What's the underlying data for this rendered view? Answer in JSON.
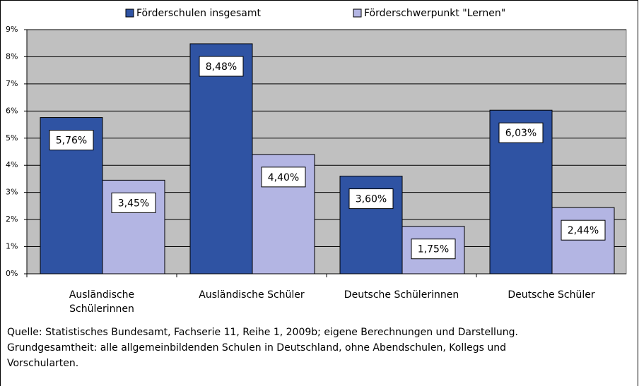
{
  "chart_data": {
    "type": "bar",
    "categories": [
      "Ausländische Schülerinnen",
      "Ausländische Schüler",
      "Deutsche Schülerinnen",
      "Deutsche Schüler"
    ],
    "series": [
      {
        "name": "Förderschulen insgesamt",
        "color": "#2f53a3",
        "values": [
          5.76,
          8.48,
          3.6,
          6.03
        ],
        "value_labels": [
          "5,76%",
          "8,48%",
          "3,60%",
          "6,03%"
        ]
      },
      {
        "name": "Förderschwerpunkt \"Lernen\"",
        "color": "#b3b5e3",
        "values": [
          3.45,
          4.4,
          1.75,
          2.44
        ],
        "value_labels": [
          "3,45%",
          "4,40%",
          "1,75%",
          "2,44%"
        ]
      }
    ],
    "ylim": [
      0,
      9
    ],
    "yticks": [
      {
        "value": 0,
        "label": "0%"
      },
      {
        "value": 1,
        "label": "1%"
      },
      {
        "value": 2,
        "label": "2%"
      },
      {
        "value": 3,
        "label": "3%"
      },
      {
        "value": 4,
        "label": "4%"
      },
      {
        "value": 5,
        "label": "5%"
      },
      {
        "value": 6,
        "label": "6%"
      },
      {
        "value": 7,
        "label": "7%"
      },
      {
        "value": 8,
        "label": "8%"
      },
      {
        "value": 9,
        "label": "9%"
      }
    ],
    "grid": true,
    "legend": "top",
    "note": [
      "Quelle: Statistisches Bundesamt, Fachserie 11, Reihe 1, 2009b; eigene Berechnungen und Darstellung.",
      "Grundgesamtheit: alle allgemeinbildenden Schulen in Deutschland, ohne Abendschulen, Kollegs und",
      "Vorschularten."
    ]
  }
}
